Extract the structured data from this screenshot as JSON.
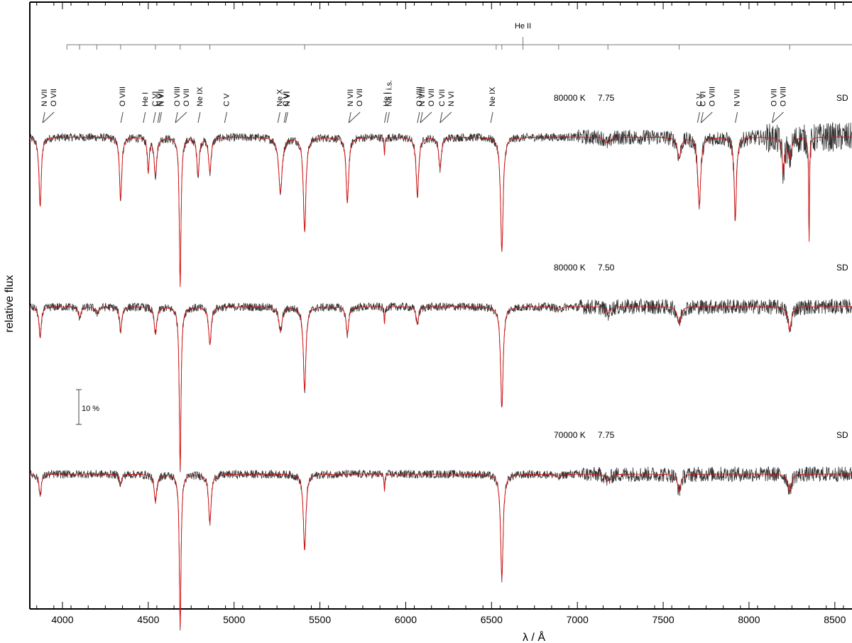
{
  "chart_data": {
    "type": "line",
    "xlabel": "λ / Å",
    "ylabel": "relative flux",
    "xlim": [
      3810,
      8600
    ],
    "xticks": [
      4000,
      4500,
      5000,
      5500,
      6000,
      6500,
      7000,
      7500,
      8000,
      8500
    ],
    "xtick_labels": [
      "4000",
      "4500",
      "5000",
      "5500",
      "6000",
      "6500",
      "7000",
      "7500",
      "8000",
      "8500"
    ],
    "scale_bar": "10 %",
    "he_ii_series": {
      "label": "He II",
      "label_x": 6683,
      "lines": [
        4026,
        4100,
        4200,
        4339,
        4542,
        4686,
        4859,
        5411,
        6527,
        6560,
        6683,
        6891,
        7178,
        7593,
        8237
      ]
    },
    "line_ids": [
      {
        "label": "N VII",
        "x": 3885
      },
      {
        "label": "O VII",
        "x": 3885
      },
      {
        "label": "O VIII",
        "x": 4340
      },
      {
        "label": "He I",
        "x": 4471
      },
      {
        "label": "C VI",
        "x": 4530
      },
      {
        "label": "N VI",
        "x": 4555
      },
      {
        "label": "N VII",
        "x": 4565
      },
      {
        "label": "O VIII",
        "x": 4658
      },
      {
        "label": "O VII",
        "x": 4658
      },
      {
        "label": "Ne IX",
        "x": 4790
      },
      {
        "label": "C V",
        "x": 4945
      },
      {
        "label": "Ne X",
        "x": 5255
      },
      {
        "label": "C VI",
        "x": 5291
      },
      {
        "label": "N VI",
        "x": 5300
      },
      {
        "label": "N VII",
        "x": 5668
      },
      {
        "label": "O VII",
        "x": 5668
      },
      {
        "label": "He I",
        "x": 5876
      },
      {
        "label": "Na I i.s.",
        "x": 5892
      },
      {
        "label": "O VIII",
        "x": 6068
      },
      {
        "label": "N VIII",
        "x": 6085
      },
      {
        "label": "O VII",
        "x": 6085
      },
      {
        "label": "C VII",
        "x": 6200
      },
      {
        "label": "N VI",
        "x": 6200
      },
      {
        "label": "Ne IX",
        "x": 6495
      },
      {
        "label": "C V",
        "x": 7700
      },
      {
        "label": "C VI",
        "x": 7720
      },
      {
        "label": "O VIII",
        "x": 7720
      },
      {
        "label": "N VII",
        "x": 7920
      },
      {
        "label": "O VII",
        "x": 8135
      },
      {
        "label": "O VIII",
        "x": 8135
      }
    ],
    "panels": [
      {
        "teff": "80000 K",
        "logg": "7.75",
        "object": "SD",
        "continuum": 1.0
      },
      {
        "teff": "80000 K",
        "logg": "7.50",
        "object": "SD",
        "continuum": 1.0
      },
      {
        "teff": "70000 K",
        "logg": "7.75",
        "object": "SD",
        "continuum": 1.0
      }
    ],
    "absorption_features": [
      {
        "x": 3870,
        "depth": [
          0.2,
          0.09,
          0.06
        ],
        "width": 8
      },
      {
        "x": 4100,
        "depth": [
          0.0,
          0.03,
          0.0
        ],
        "width": 10
      },
      {
        "x": 4200,
        "depth": [
          0.0,
          0.02,
          0.0
        ],
        "width": 10
      },
      {
        "x": 4339,
        "depth": [
          0.18,
          0.07,
          0.03
        ],
        "width": 8
      },
      {
        "x": 4500,
        "depth": [
          0.1,
          0.0,
          0.0
        ],
        "width": 6
      },
      {
        "x": 4542,
        "depth": [
          0.11,
          0.08,
          0.08
        ],
        "width": 9
      },
      {
        "x": 4686,
        "depth": [
          0.43,
          0.47,
          0.44
        ],
        "width": 6
      },
      {
        "x": 4790,
        "depth": [
          0.11,
          0.0,
          0.0
        ],
        "width": 8
      },
      {
        "x": 4859,
        "depth": [
          0.1,
          0.11,
          0.14
        ],
        "width": 9
      },
      {
        "x": 5270,
        "depth": [
          0.16,
          0.07,
          0.0
        ],
        "width": 12
      },
      {
        "x": 5411,
        "depth": [
          0.27,
          0.24,
          0.22
        ],
        "width": 9
      },
      {
        "x": 5660,
        "depth": [
          0.19,
          0.08,
          0.0
        ],
        "width": 9
      },
      {
        "x": 5876,
        "depth": [
          0.05,
          0.05,
          0.05
        ],
        "width": 3
      },
      {
        "x": 6068,
        "depth": [
          0.17,
          0.05,
          0.0
        ],
        "width": 9
      },
      {
        "x": 6200,
        "depth": [
          0.09,
          0.0,
          0.0
        ],
        "width": 9
      },
      {
        "x": 6560,
        "depth": [
          0.33,
          0.29,
          0.3
        ],
        "width": 9
      },
      {
        "x": 6891,
        "depth": [
          0.0,
          0.01,
          0.01
        ],
        "width": 15
      },
      {
        "x": 7178,
        "depth": [
          0.02,
          0.02,
          0.02
        ],
        "width": 15
      },
      {
        "x": 7593,
        "depth": [
          0.06,
          0.05,
          0.05
        ],
        "width": 12
      },
      {
        "x": 7710,
        "depth": [
          0.2,
          0.0,
          0.0
        ],
        "width": 10
      },
      {
        "x": 7920,
        "depth": [
          0.24,
          0.0,
          0.0
        ],
        "width": 8
      },
      {
        "x": 8200,
        "depth": [
          0.1,
          0.0,
          0.0
        ],
        "width": 8
      },
      {
        "x": 8237,
        "depth": [
          0.06,
          0.07,
          0.05
        ],
        "width": 12
      },
      {
        "x": 8350,
        "depth": [
          0.3,
          0.0,
          0.0
        ],
        "width": 3
      }
    ],
    "grid": false,
    "series": [
      {
        "name": "observed",
        "color": "#333333"
      },
      {
        "name": "model",
        "color": "#e01010"
      }
    ]
  }
}
